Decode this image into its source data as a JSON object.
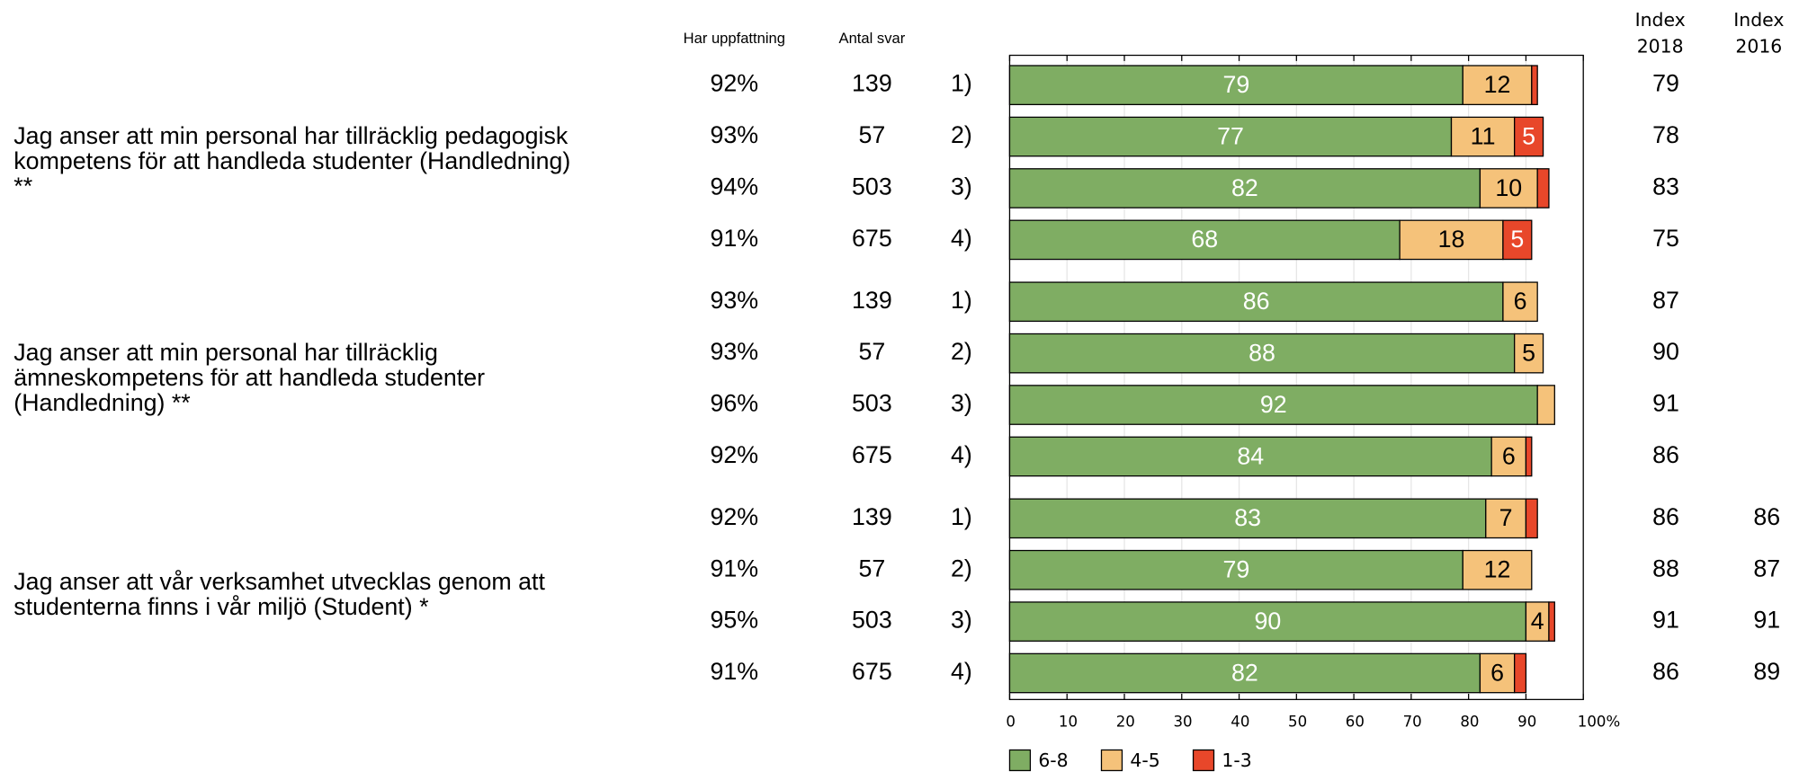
{
  "chart_data": {
    "type": "bar",
    "orientation": "horizontal",
    "stacked": true,
    "headers": {
      "har_uppfattning": "Har uppfattning",
      "antal_svar": "Antal svar",
      "index_2018": [
        "Index",
        "2018"
      ],
      "index_2016": [
        "Index",
        "2016"
      ]
    },
    "questions": [
      [
        "Jag anser att min personal har tillräcklig pedagogisk",
        "kompetens för att handleda studenter (Handledning)",
        "**"
      ],
      [
        "Jag anser att min personal har tillräcklig",
        "ämneskompetens för att handleda studenter",
        "(Handledning) **"
      ],
      [
        "Jag anser att vår verksamhet utvecklas genom att",
        "studenterna finns i vår miljö (Student) *"
      ]
    ],
    "categories": [
      "1)",
      "2)",
      "3)",
      "4)",
      "1)",
      "2)",
      "3)",
      "4)",
      "1)",
      "2)",
      "3)",
      "4)"
    ],
    "har_uppfattning": [
      "92%",
      "93%",
      "94%",
      "91%",
      "93%",
      "93%",
      "96%",
      "92%",
      "92%",
      "91%",
      "95%",
      "91%"
    ],
    "antal_svar": [
      139,
      57,
      503,
      675,
      139,
      57,
      503,
      675,
      139,
      57,
      503,
      675
    ],
    "index_2018": [
      79,
      78,
      83,
      75,
      87,
      90,
      91,
      86,
      86,
      88,
      91,
      86
    ],
    "index_2016": [
      null,
      null,
      null,
      null,
      null,
      null,
      null,
      null,
      86,
      87,
      91,
      89
    ],
    "series": [
      {
        "name": "6-8",
        "color": "#7fad63",
        "values": [
          79,
          77,
          82,
          68,
          86,
          88,
          92,
          84,
          83,
          79,
          90,
          82
        ]
      },
      {
        "name": "4-5",
        "color": "#f5c27a",
        "values": [
          12,
          11,
          10,
          18,
          6,
          5,
          3,
          6,
          7,
          12,
          4,
          6
        ]
      },
      {
        "name": "1-3",
        "color": "#e8472a",
        "values": [
          1,
          5,
          2,
          5,
          null,
          null,
          null,
          1,
          2,
          null,
          1,
          2
        ]
      }
    ],
    "xlim": [
      0,
      100
    ],
    "xticks": [
      0,
      10,
      20,
      30,
      40,
      50,
      60,
      70,
      80,
      90,
      {
        "value": 100,
        "label": "100%"
      }
    ]
  }
}
